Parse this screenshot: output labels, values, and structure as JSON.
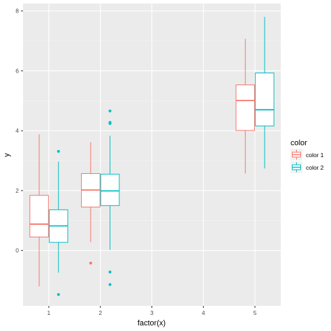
{
  "chart_data": {
    "type": "boxplot",
    "title": "",
    "xlabel": "factor(x)",
    "ylabel": "y",
    "x_categories": [
      "1",
      "2",
      "3",
      "4",
      "5"
    ],
    "y_ticks": [
      0,
      2,
      4,
      6,
      8
    ],
    "ylim": [
      -1.85,
      8.25
    ],
    "grid": true,
    "legend": {
      "title": "color",
      "placement": "right",
      "entries": [
        {
          "name": "color 1",
          "color": "#F8766D"
        },
        {
          "name": "color 2",
          "color": "#00BFC4"
        }
      ]
    },
    "series": [
      {
        "name": "color 1",
        "color": "#F8766D",
        "boxes": [
          {
            "x": "1",
            "whisker_low": -1.2,
            "q1": 0.45,
            "median": 0.88,
            "q3": 1.84,
            "whisker_high": 3.88,
            "outliers": []
          },
          {
            "x": "2",
            "whisker_low": 0.28,
            "q1": 1.45,
            "median": 2.02,
            "q3": 2.57,
            "whisker_high": 3.62,
            "outliers": [
              -0.42
            ]
          },
          {
            "x": "5",
            "whisker_low": 2.57,
            "q1": 4.01,
            "median": 5.01,
            "q3": 5.53,
            "whisker_high": 7.07,
            "outliers": []
          }
        ]
      },
      {
        "name": "color 2",
        "color": "#00BFC4",
        "boxes": [
          {
            "x": "1",
            "whisker_low": -0.74,
            "q1": 0.27,
            "median": 0.82,
            "q3": 1.36,
            "whisker_high": 2.97,
            "outliers": [
              3.31,
              -1.47
            ]
          },
          {
            "x": "2",
            "whisker_low": 0.02,
            "q1": 1.5,
            "median": 1.99,
            "q3": 2.55,
            "whisker_high": 3.83,
            "outliers": [
              4.66,
              4.28,
              4.24,
              -0.72,
              -1.14
            ]
          },
          {
            "x": "5",
            "whisker_low": 2.74,
            "q1": 4.16,
            "median": 4.7,
            "q3": 5.93,
            "whisker_high": 7.8,
            "outliers": []
          }
        ]
      }
    ]
  }
}
